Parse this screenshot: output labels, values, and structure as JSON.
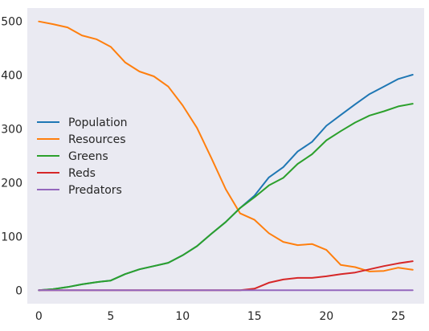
{
  "chart_data": {
    "type": "line",
    "title": "",
    "xlabel": "",
    "ylabel": "",
    "xlim": [
      -0.8,
      26.8
    ],
    "ylim": [
      -25,
      525
    ],
    "x_ticks": [
      0,
      5,
      10,
      15,
      20,
      25
    ],
    "y_ticks": [
      0,
      100,
      200,
      300,
      400,
      500
    ],
    "x_tick_labels": [
      "0",
      "5",
      "10",
      "15",
      "20",
      "25"
    ],
    "y_tick_labels": [
      "0",
      "100",
      "200",
      "300",
      "400",
      "500"
    ],
    "grid": false,
    "legend_position": "center-left",
    "background": "#EAEAF2",
    "x": [
      0,
      1,
      2,
      3,
      4,
      5,
      6,
      7,
      8,
      9,
      10,
      11,
      12,
      13,
      14,
      15,
      16,
      17,
      18,
      19,
      20,
      21,
      22,
      23,
      24,
      25,
      26
    ],
    "series": [
      {
        "name": "Population",
        "color": "#1f77b4",
        "values": [
          0,
          2,
          6,
          11,
          15,
          18,
          30,
          39,
          45,
          51,
          65,
          82,
          105,
          127,
          153,
          176,
          210,
          229,
          258,
          276,
          306,
          326,
          346,
          365,
          379,
          393,
          401
        ]
      },
      {
        "name": "Resources",
        "color": "#ff7f0e",
        "values": [
          500,
          495,
          489,
          474,
          467,
          453,
          424,
          407,
          398,
          379,
          344,
          302,
          246,
          188,
          143,
          131,
          106,
          90,
          84,
          86,
          75,
          47,
          43,
          35,
          36,
          42,
          38
        ]
      },
      {
        "name": "Greens",
        "color": "#2ca02c",
        "values": [
          0,
          2,
          6,
          11,
          15,
          18,
          30,
          39,
          45,
          51,
          65,
          82,
          105,
          127,
          153,
          173,
          195,
          209,
          235,
          253,
          279,
          296,
          312,
          325,
          333,
          342,
          347
        ]
      },
      {
        "name": "Reds",
        "color": "#d62728",
        "values": [
          0,
          0,
          0,
          0,
          0,
          0,
          0,
          0,
          0,
          0,
          0,
          0,
          0,
          0,
          0,
          3,
          14,
          20,
          23,
          23,
          26,
          30,
          33,
          39,
          45,
          50,
          54
        ]
      },
      {
        "name": "Predators",
        "color": "#9467bd",
        "values": [
          0,
          0,
          0,
          0,
          0,
          0,
          0,
          0,
          0,
          0,
          0,
          0,
          0,
          0,
          0,
          0,
          0,
          0,
          0,
          0,
          0,
          0,
          0,
          0,
          0,
          0,
          0
        ]
      }
    ]
  }
}
